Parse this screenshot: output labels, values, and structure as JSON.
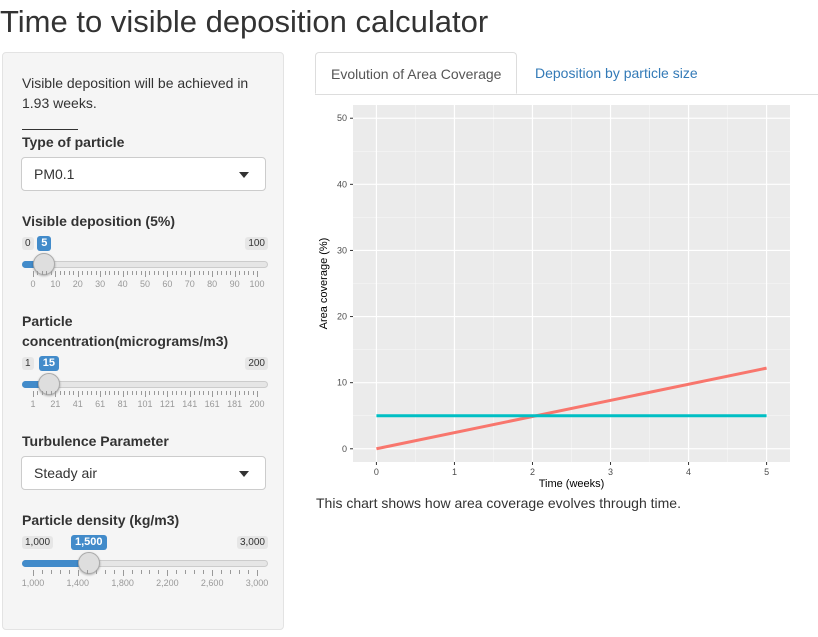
{
  "page": {
    "title": "Time to visible deposition calculator"
  },
  "sidebar": {
    "status_text": "Visible deposition will be achieved in 1.93 weeks.",
    "particle_type": {
      "label": "Type of particle",
      "value": "PM0.1"
    },
    "visible_deposition": {
      "label": "Visible deposition (5%)",
      "min_label": "0",
      "max_label": "100",
      "value_label": "5",
      "min": 0,
      "max": 100,
      "value": 5,
      "grid": [
        "0",
        "10",
        "20",
        "30",
        "40",
        "50",
        "60",
        "70",
        "80",
        "90",
        "100"
      ]
    },
    "concentration": {
      "label_line1": "Particle",
      "label_line2": "concentration(micrograms/m3)",
      "min_label": "1",
      "max_label": "200",
      "value_label": "15",
      "min": 1,
      "max": 200,
      "value": 15,
      "grid": [
        "1",
        "21",
        "41",
        "61",
        "81",
        "101",
        "121",
        "141",
        "161",
        "181",
        "200"
      ]
    },
    "turbulence": {
      "label": "Turbulence Parameter",
      "value": "Steady air"
    },
    "density": {
      "label": "Particle density (kg/m3)",
      "min_label": "1,000",
      "max_label": "3,000",
      "value_label": "1,500",
      "min": 1000,
      "max": 3000,
      "value": 1500,
      "grid": [
        "1,000",
        "1,400",
        "1,800",
        "2,200",
        "2,600",
        "3,000"
      ]
    }
  },
  "tabs": [
    {
      "label": "Evolution of Area Coverage",
      "active": true
    },
    {
      "label": "Deposition by particle size",
      "active": false
    }
  ],
  "caption": "This chart shows how area coverage evolves through time.",
  "colors": {
    "accent": "#428bca",
    "series_red": "#f8766d",
    "series_teal": "#00bfc4",
    "panel_bg": "#ebebeb"
  },
  "chart_data": {
    "type": "line",
    "xlabel": "Time (weeks)",
    "ylabel": "Area coverage (%)",
    "xlim": [
      -0.3,
      5.3
    ],
    "ylim": [
      -2,
      52
    ],
    "xticks": [
      0,
      1,
      2,
      3,
      4,
      5
    ],
    "yticks": [
      0,
      10,
      20,
      30,
      40,
      50
    ],
    "grid": true,
    "series": [
      {
        "color": "#f8766d",
        "x": [
          0,
          5
        ],
        "y": [
          0,
          12.2
        ]
      },
      {
        "color": "#00bfc4",
        "x": [
          0,
          5
        ],
        "y": [
          5,
          5
        ]
      }
    ]
  }
}
